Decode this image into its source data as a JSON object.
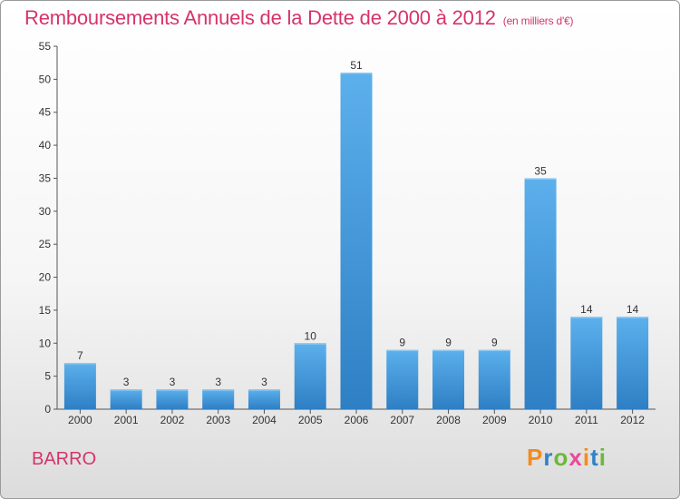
{
  "title": "Remboursements Annuels de la Dette de 2000 à 2012",
  "unit": "(en milliers d'€)",
  "place": "BARRO",
  "logo": "Proxiti",
  "colors": {
    "bar": "#3d97dc",
    "bar_light": "#5aacea",
    "title": "#d6336c"
  },
  "chart_data": {
    "type": "bar",
    "title": "Remboursements Annuels de la Dette de 2000 à 2012",
    "xlabel": "",
    "ylabel": "",
    "ylim": [
      0,
      55
    ],
    "yticks": [
      0,
      5,
      10,
      15,
      20,
      25,
      30,
      35,
      40,
      45,
      50,
      55
    ],
    "grid": false,
    "categories": [
      "2000",
      "2001",
      "2002",
      "2003",
      "2004",
      "2005",
      "2006",
      "2007",
      "2008",
      "2009",
      "2010",
      "2011",
      "2012"
    ],
    "values": [
      7,
      3,
      3,
      3,
      3,
      10,
      51,
      9,
      9,
      9,
      35,
      14,
      14
    ]
  }
}
